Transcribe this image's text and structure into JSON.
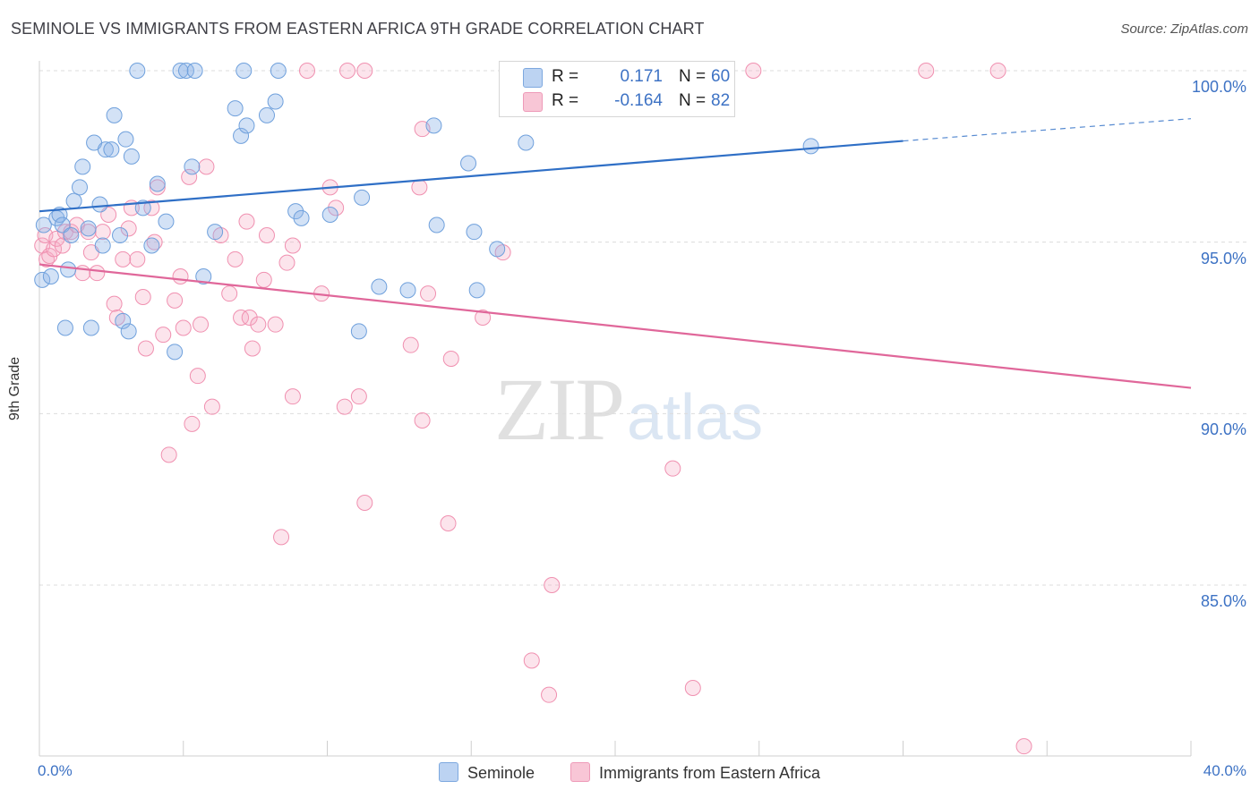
{
  "header": {
    "title": "SEMINOLE VS IMMIGRANTS FROM EASTERN AFRICA 9TH GRADE CORRELATION CHART",
    "source": "Source: ZipAtlas.com"
  },
  "watermark": {
    "zip": "ZIP",
    "atlas": "atlas"
  },
  "legend": {
    "rows": [
      {
        "r_label": "R =",
        "r_value": "0.171",
        "n_label": "N =",
        "n_value": "60"
      },
      {
        "r_label": "R =",
        "r_value": "-0.164",
        "n_label": "N =",
        "n_value": "82"
      }
    ]
  },
  "chart_data": {
    "type": "scatter",
    "title": "SEMINOLE VS IMMIGRANTS FROM EASTERN AFRICA 9TH GRADE CORRELATION CHART",
    "xlabel": "",
    "ylabel": "9th Grade",
    "xlim": [
      0,
      40
    ],
    "ylim": [
      80,
      100.5
    ],
    "x_tick_labels": [
      "0.0%",
      "40.0%"
    ],
    "y_ticks": [
      85,
      90,
      95,
      100
    ],
    "y_tick_labels": [
      "85.0%",
      "90.0%",
      "95.0%",
      "100.0%"
    ],
    "grid": true,
    "legend_position": "top-center",
    "colors": {
      "seminole": "#6fa0dc",
      "seminole_fill": "rgba(140,180,232,0.38)",
      "seminole_line": "#2f6fc6",
      "eastern_africa": "#f090b0",
      "eastern_africa_fill": "rgba(246,170,196,0.32)",
      "eastern_africa_line": "#e0679a"
    },
    "series": [
      {
        "name": "Seminole",
        "r": 0.171,
        "n": 60,
        "trend": {
          "x0": 0,
          "y0": 95.9,
          "x1": 30,
          "y1": 97.95,
          "dash_to_x": 40,
          "dash_to_y": 98.6
        },
        "points": [
          [
            0.1,
            93.9
          ],
          [
            0.15,
            95.5
          ],
          [
            0.4,
            94.0
          ],
          [
            0.6,
            95.7
          ],
          [
            0.7,
            95.8
          ],
          [
            0.8,
            95.5
          ],
          [
            0.9,
            92.5
          ],
          [
            1.0,
            94.2
          ],
          [
            1.1,
            95.2
          ],
          [
            1.2,
            96.2
          ],
          [
            1.4,
            96.6
          ],
          [
            1.5,
            97.2
          ],
          [
            1.7,
            95.4
          ],
          [
            1.8,
            92.5
          ],
          [
            1.9,
            97.9
          ],
          [
            2.1,
            96.1
          ],
          [
            2.2,
            94.9
          ],
          [
            2.3,
            97.7
          ],
          [
            2.5,
            97.7
          ],
          [
            2.6,
            98.7
          ],
          [
            2.8,
            95.2
          ],
          [
            2.9,
            92.7
          ],
          [
            3.0,
            98.0
          ],
          [
            3.1,
            92.4
          ],
          [
            3.2,
            97.5
          ],
          [
            3.4,
            100.0
          ],
          [
            3.6,
            96.0
          ],
          [
            3.9,
            94.9
          ],
          [
            4.1,
            96.7
          ],
          [
            4.4,
            95.6
          ],
          [
            4.7,
            91.8
          ],
          [
            4.9,
            100.0
          ],
          [
            5.1,
            100.0
          ],
          [
            5.3,
            97.2
          ],
          [
            5.4,
            100.0
          ],
          [
            5.7,
            94.0
          ],
          [
            6.1,
            95.3
          ],
          [
            6.8,
            98.9
          ],
          [
            7.0,
            98.1
          ],
          [
            7.1,
            100.0
          ],
          [
            7.2,
            98.4
          ],
          [
            7.9,
            98.7
          ],
          [
            8.2,
            99.1
          ],
          [
            8.3,
            100.0
          ],
          [
            8.9,
            95.9
          ],
          [
            9.1,
            95.7
          ],
          [
            10.1,
            95.8
          ],
          [
            11.1,
            92.4
          ],
          [
            11.2,
            96.3
          ],
          [
            11.8,
            93.7
          ],
          [
            12.8,
            93.6
          ],
          [
            13.7,
            98.4
          ],
          [
            13.8,
            95.5
          ],
          [
            14.9,
            97.3
          ],
          [
            15.1,
            95.3
          ],
          [
            15.2,
            93.6
          ],
          [
            15.9,
            94.8
          ],
          [
            16.9,
            97.9
          ],
          [
            19.5,
            100.0
          ],
          [
            26.8,
            97.8
          ]
        ]
      },
      {
        "name": "Immigrants from Eastern Africa",
        "r": -0.164,
        "n": 82,
        "trend": {
          "x0": 0,
          "y0": 94.35,
          "x1": 40,
          "y1": 90.75
        },
        "points": [
          [
            0.1,
            94.9
          ],
          [
            0.2,
            95.2
          ],
          [
            0.25,
            94.5
          ],
          [
            0.35,
            94.6
          ],
          [
            0.5,
            94.8
          ],
          [
            0.6,
            95.1
          ],
          [
            0.8,
            94.9
          ],
          [
            0.9,
            95.3
          ],
          [
            1.1,
            95.3
          ],
          [
            1.3,
            95.5
          ],
          [
            1.5,
            94.1
          ],
          [
            1.7,
            95.3
          ],
          [
            1.8,
            94.7
          ],
          [
            2.0,
            94.1
          ],
          [
            2.2,
            95.3
          ],
          [
            2.4,
            95.8
          ],
          [
            2.6,
            93.2
          ],
          [
            2.7,
            92.8
          ],
          [
            2.9,
            94.5
          ],
          [
            3.1,
            95.4
          ],
          [
            3.2,
            96.0
          ],
          [
            3.4,
            94.5
          ],
          [
            3.6,
            93.4
          ],
          [
            3.7,
            91.9
          ],
          [
            3.9,
            96.0
          ],
          [
            4.0,
            95.0
          ],
          [
            4.1,
            96.6
          ],
          [
            4.3,
            92.3
          ],
          [
            4.5,
            88.8
          ],
          [
            4.7,
            93.3
          ],
          [
            4.9,
            94.0
          ],
          [
            5.0,
            92.5
          ],
          [
            5.2,
            96.9
          ],
          [
            5.3,
            89.7
          ],
          [
            5.5,
            91.1
          ],
          [
            5.6,
            92.6
          ],
          [
            5.8,
            97.2
          ],
          [
            6.0,
            90.2
          ],
          [
            6.3,
            95.2
          ],
          [
            6.6,
            93.5
          ],
          [
            6.8,
            94.5
          ],
          [
            7.0,
            92.8
          ],
          [
            7.2,
            95.6
          ],
          [
            7.3,
            92.8
          ],
          [
            7.4,
            91.9
          ],
          [
            7.6,
            92.6
          ],
          [
            7.8,
            93.9
          ],
          [
            7.9,
            95.2
          ],
          [
            8.2,
            92.6
          ],
          [
            8.4,
            86.4
          ],
          [
            8.6,
            94.4
          ],
          [
            8.8,
            90.5
          ],
          [
            8.8,
            94.9
          ],
          [
            9.3,
            100.0
          ],
          [
            9.8,
            93.5
          ],
          [
            10.1,
            96.6
          ],
          [
            10.3,
            96.0
          ],
          [
            10.6,
            90.2
          ],
          [
            10.7,
            100.0
          ],
          [
            11.1,
            90.5
          ],
          [
            11.3,
            100.0
          ],
          [
            11.3,
            87.4
          ],
          [
            12.9,
            92.0
          ],
          [
            13.2,
            96.6
          ],
          [
            13.3,
            89.8
          ],
          [
            13.3,
            98.3
          ],
          [
            13.5,
            93.5
          ],
          [
            14.2,
            86.8
          ],
          [
            14.3,
            91.6
          ],
          [
            15.4,
            92.8
          ],
          [
            16.1,
            94.7
          ],
          [
            17.1,
            82.8
          ],
          [
            17.7,
            81.8
          ],
          [
            17.8,
            85.0
          ],
          [
            18.2,
            100.0
          ],
          [
            22.0,
            88.4
          ],
          [
            22.7,
            82.0
          ],
          [
            24.8,
            100.0
          ],
          [
            30.8,
            100.0
          ],
          [
            33.3,
            100.0
          ],
          [
            34.2,
            80.3
          ],
          [
            19.5,
            100.0
          ]
        ]
      }
    ]
  },
  "bottom_legend": {
    "items": [
      {
        "label": "Seminole"
      },
      {
        "label": "Immigrants from Eastern Africa"
      }
    ]
  }
}
